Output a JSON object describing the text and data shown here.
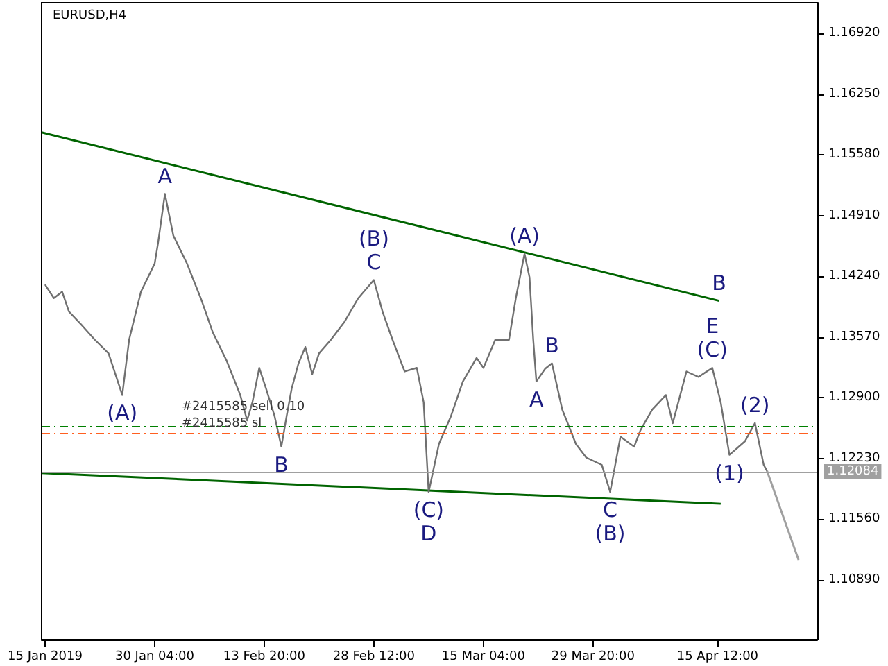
{
  "chart_data": {
    "type": "line",
    "title": "EURUSD,H4",
    "xlim": [
      "2019-01-15T01:00",
      "2019-04-28T20:00"
    ],
    "xticks": [
      {
        "value": "2019-01-15T12:00",
        "label": "15 Jan 2019"
      },
      {
        "value": "2019-01-30T04:00",
        "label": "30 Jan 04:00"
      },
      {
        "value": "2019-02-13T20:00",
        "label": "13 Feb 20:00"
      },
      {
        "value": "2019-02-28T12:00",
        "label": "28 Feb 12:00"
      },
      {
        "value": "2019-03-15T04:00",
        "label": "15 Mar 04:00"
      },
      {
        "value": "2019-03-29T20:00",
        "label": "29 Mar 20:00"
      },
      {
        "value": "2019-04-15T12:00",
        "label": "15 Apr 12:00"
      }
    ],
    "ylim": [
      1.1023,
      1.1726
    ],
    "yticks": [
      {
        "value": 1.1089,
        "label": "1.10890"
      },
      {
        "value": 1.1156,
        "label": "1.11560"
      },
      {
        "value": 1.1223,
        "label": "1.12230"
      },
      {
        "value": 1.129,
        "label": "1.12900"
      },
      {
        "value": 1.1357,
        "label": "1.13570"
      },
      {
        "value": 1.1424,
        "label": "1.14240"
      },
      {
        "value": 1.1491,
        "label": "1.14910"
      },
      {
        "value": 1.1558,
        "label": "1.15580"
      },
      {
        "value": 1.1625,
        "label": "1.16250"
      },
      {
        "value": 1.1692,
        "label": "1.16920"
      }
    ],
    "grid": false,
    "marker": "none",
    "series": [
      {
        "color": "#707070",
        "x": [
          "2019-01-15T12:00",
          "2019-01-16T16:00",
          "2019-01-17T19:00",
          "2019-01-18T17:00",
          "2019-01-20T13:00",
          "2019-01-22T04:00",
          "2019-01-24T00:00",
          "2019-01-24T22:00",
          "2019-01-25T20:00",
          "2019-01-26T18:00",
          "2019-01-28T08:00",
          "2019-01-30T04:00",
          "2019-01-30T15:00",
          "2019-01-31T13:00",
          "2019-02-01T16:00",
          "2019-02-03T12:00",
          "2019-02-05T08:00",
          "2019-02-06T23:00",
          "2019-02-08T19:00",
          "2019-02-10T15:00",
          "2019-02-11T13:00",
          "2019-02-12T06:00",
          "2019-02-13T04:00",
          "2019-02-14T02:00",
          "2019-02-15T05:00",
          "2019-02-16T03:00",
          "2019-02-16T20:00",
          "2019-02-17T12:00",
          "2019-02-18T10:00",
          "2019-02-19T08:00",
          "2019-02-20T06:00",
          "2019-02-21T04:00",
          "2019-02-22T18:00",
          "2019-02-24T14:00",
          "2019-02-26T10:00",
          "2019-02-28T12:00",
          "2019-03-01T16:00",
          "2019-03-03T00:00",
          "2019-03-04T15:00",
          "2019-03-06T06:00",
          "2019-03-07T04:00",
          "2019-03-07T20:00",
          "2019-03-09T05:00",
          "2019-03-10T20:00",
          "2019-03-12T10:00",
          "2019-03-14T06:00",
          "2019-03-15T04:00",
          "2019-03-16T18:00",
          "2019-03-18T14:00",
          "2019-03-19T12:00",
          "2019-03-20T16:00",
          "2019-03-21T08:00",
          "2019-03-21T20:00",
          "2019-03-22T06:00",
          "2019-03-23T10:00",
          "2019-03-24T08:00",
          "2019-03-25T17:00",
          "2019-03-27T13:00",
          "2019-03-28T22:00",
          "2019-03-31T00:00",
          "2019-04-01T03:00",
          "2019-04-02T12:00",
          "2019-04-04T08:00",
          "2019-04-05T04:00",
          "2019-04-06T18:00",
          "2019-04-08T14:00",
          "2019-04-09T12:00",
          "2019-04-11T08:00",
          "2019-04-12T23:00",
          "2019-04-14T19:00",
          "2019-04-15T22:00",
          "2019-04-17T02:00",
          "2019-04-19T04:00",
          "2019-04-20T12:00",
          "2019-04-21T16:00",
          "2019-04-22T03:00"
        ],
        "values": [
          1.1415,
          1.14,
          1.1407,
          1.1385,
          1.1369,
          1.1354,
          1.1339,
          1.1316,
          1.1293,
          1.1354,
          1.1407,
          1.1438,
          1.1461,
          1.1515,
          1.1469,
          1.1438,
          1.14,
          1.1362,
          1.1331,
          1.1293,
          1.1265,
          1.1285,
          1.1323,
          1.13,
          1.127,
          1.1236,
          1.127,
          1.13,
          1.1328,
          1.1346,
          1.1316,
          1.1339,
          1.1354,
          1.1374,
          1.14,
          1.142,
          1.1385,
          1.1354,
          1.1319,
          1.1323,
          1.1285,
          1.1186,
          1.1239,
          1.127,
          1.1308,
          1.1334,
          1.1323,
          1.1354,
          1.1354,
          1.14,
          1.1449,
          1.1423,
          1.1354,
          1.1308,
          1.1322,
          1.1328,
          1.1277,
          1.1239,
          1.1224,
          1.1216,
          1.1186,
          1.1247,
          1.1236,
          1.1254,
          1.1277,
          1.1293,
          1.1262,
          1.1319,
          1.1313,
          1.1323,
          1.1285,
          1.1227,
          1.1242,
          1.1262,
          1.1216,
          1.1209
        ]
      },
      {
        "color": "#a0a0a0",
        "x": [
          "2019-04-22T03:00",
          "2019-04-26T08:00"
        ],
        "values": [
          1.1209,
          1.1111
        ]
      },
      {
        "color": "#006400",
        "x": [
          "2019-01-15T01:00",
          "2019-04-15T17:00"
        ],
        "values": [
          1.1583,
          1.1397
        ]
      },
      {
        "color": "#006400",
        "x": [
          "2019-01-15T01:00",
          "2019-04-15T22:00"
        ],
        "values": [
          1.1207,
          1.1173
        ]
      }
    ],
    "ref_lines": [
      {
        "axis": "y",
        "value": 1.12084,
        "label": "1.12084",
        "color": "#a0a0a0",
        "line_style": "solid"
      },
      {
        "axis": "y",
        "value": 1.1259,
        "label": "#2415585 sell 0.10",
        "color": "#008000",
        "line_style": "dashed"
      },
      {
        "axis": "y",
        "value": 1.1251,
        "label": "#2415585 sl",
        "color": "#ff6020",
        "line_style": "dashed"
      }
    ],
    "annotations": [
      {
        "text": "A",
        "x": "2019-01-31T13:00",
        "y": 1.1515
      },
      {
        "text": "(A)",
        "x": "2019-01-25T20:00",
        "y": 1.1293
      },
      {
        "text": "B",
        "x": "2019-02-16T03:00",
        "y": 1.1236
      },
      {
        "text": "C",
        "x": "2019-02-28T12:00",
        "y": 1.142
      },
      {
        "text": "(B)",
        "x": "2019-02-28T12:00",
        "y": 1.142
      },
      {
        "text": "(C)",
        "x": "2019-03-07T20:00",
        "y": 1.1186
      },
      {
        "text": "D",
        "x": "2019-03-07T20:00",
        "y": 1.1186
      },
      {
        "text": "(A)",
        "x": "2019-03-20T16:00",
        "y": 1.1449
      },
      {
        "text": "B",
        "x": "2019-03-24T08:00",
        "y": 1.1328
      },
      {
        "text": "A",
        "x": "2019-03-22T06:00",
        "y": 1.1308
      },
      {
        "text": "C",
        "x": "2019-04-01T03:00",
        "y": 1.1186
      },
      {
        "text": "(B)",
        "x": "2019-04-01T03:00",
        "y": 1.1186
      },
      {
        "text": "(C)",
        "x": "2019-04-14T19:00",
        "y": 1.1323
      },
      {
        "text": "E",
        "x": "2019-04-14T19:00",
        "y": 1.1323
      },
      {
        "text": "B",
        "x": "2019-04-15T17:00",
        "y": 1.1397
      },
      {
        "text": "(1)",
        "x": "2019-04-17T02:00",
        "y": 1.1227
      },
      {
        "text": "(2)",
        "x": "2019-04-20T12:00",
        "y": 1.1262
      }
    ]
  }
}
